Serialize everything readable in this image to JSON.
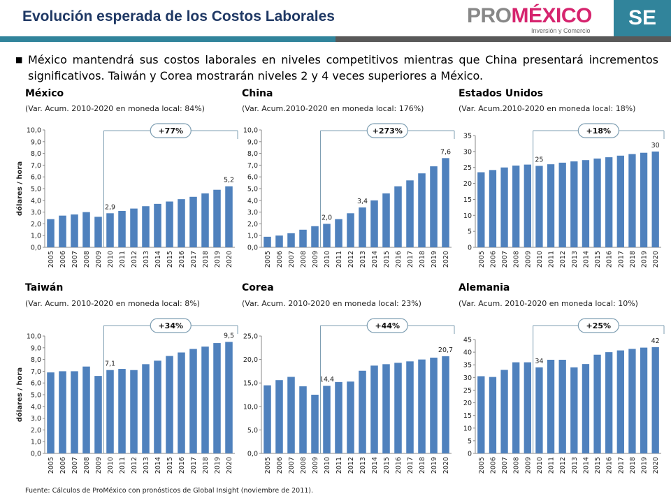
{
  "header": {
    "title": "Evolución esperada de los Costos Laborales",
    "logo_main_pro": "PRO",
    "logo_main_mexico": "MÉXICO",
    "logo_sub": "Inversión y Comercio",
    "se_badge": "SE"
  },
  "colors": {
    "bar": "#4f81bd",
    "accent": "#31849b",
    "title": "#1f3864",
    "brand_pink": "#d6246e"
  },
  "bullet_text": "México mantendrá sus costos laborales en niveles competitivos mientras que China presentará incrementos significativos. Taiwán y Corea mostrarán niveles 2 y 4 veces superiores a México.",
  "source": "Fuente: Cálculos de ProMéxico con pronósticos de Global Insight (noviembre de 2011).",
  "chart_data": [
    {
      "id": "mexico",
      "type": "bar",
      "title": "México",
      "subtitle": "(Var. Acum. 2010-2020 en moneda local: 84%)",
      "ylabel": "dólares / hora",
      "ylim": [
        0,
        10
      ],
      "ystep": 1,
      "decimals": 1,
      "categories": [
        "2005",
        "2006",
        "2007",
        "2008",
        "2009",
        "2010",
        "2011",
        "2012",
        "2013",
        "2014",
        "2015",
        "2016",
        "2017",
        "2018",
        "2019",
        "2020"
      ],
      "values": [
        2.4,
        2.7,
        2.8,
        3.0,
        2.6,
        2.9,
        3.1,
        3.3,
        3.5,
        3.7,
        3.9,
        4.1,
        4.3,
        4.6,
        4.9,
        5.2
      ],
      "labels": [
        {
          "index": 5,
          "text": "2,9"
        },
        {
          "index": 15,
          "text": "5,2"
        }
      ],
      "badge": "+77%"
    },
    {
      "id": "china",
      "type": "bar",
      "title": "China",
      "subtitle": "(Var. Acum.2010-2020 en moneda local: 176%)",
      "ylabel": "",
      "ylim": [
        0,
        10
      ],
      "ystep": 1,
      "decimals": 1,
      "categories": [
        "2005",
        "2006",
        "2007",
        "2008",
        "2009",
        "2010",
        "2011",
        "2012",
        "2013",
        "2014",
        "2015",
        "2016",
        "2017",
        "2018",
        "2019",
        "2020"
      ],
      "values": [
        0.9,
        1.0,
        1.2,
        1.5,
        1.8,
        2.0,
        2.4,
        2.9,
        3.4,
        4.0,
        4.6,
        5.2,
        5.7,
        6.3,
        6.9,
        7.6
      ],
      "labels": [
        {
          "index": 5,
          "text": "2,0"
        },
        {
          "index": 8,
          "text": "3,4"
        },
        {
          "index": 15,
          "text": "7,6"
        }
      ],
      "badge": "+273%"
    },
    {
      "id": "usa",
      "type": "bar",
      "title": "Estados Unidos",
      "subtitle": "(Var. Acum.2010-2020 en moneda local: 18%)",
      "ylabel": "",
      "ylim": [
        0,
        35
      ],
      "ystep": 5,
      "decimals": 0,
      "categories": [
        "2005",
        "2006",
        "2007",
        "2008",
        "2009",
        "2010",
        "2011",
        "2012",
        "2013",
        "2014",
        "2015",
        "2016",
        "2017",
        "2018",
        "2019",
        "2020"
      ],
      "values": [
        23.5,
        24.2,
        25.0,
        25.6,
        25.9,
        25.5,
        26.0,
        26.5,
        26.9,
        27.3,
        27.8,
        28.2,
        28.7,
        29.2,
        29.6,
        30.0
      ],
      "labels": [
        {
          "index": 5,
          "text": "25"
        },
        {
          "index": 15,
          "text": "30"
        }
      ],
      "badge": "+18%"
    },
    {
      "id": "taiwan",
      "type": "bar",
      "title": "Taiwán",
      "subtitle": "(Var. Acum. 2010-2020 en moneda local: 8%)",
      "ylabel": "dólares / hora",
      "ylim": [
        0,
        10
      ],
      "ystep": 1,
      "decimals": 1,
      "categories": [
        "2005",
        "2006",
        "2007",
        "2008",
        "2009",
        "2010",
        "2011",
        "2012",
        "2013",
        "2014",
        "2015",
        "2016",
        "2017",
        "2018",
        "2019",
        "2020"
      ],
      "values": [
        6.9,
        7.0,
        7.0,
        7.4,
        6.6,
        7.1,
        7.2,
        7.1,
        7.6,
        7.9,
        8.3,
        8.6,
        8.9,
        9.1,
        9.4,
        9.5
      ],
      "labels": [
        {
          "index": 5,
          "text": "7,1"
        },
        {
          "index": 15,
          "text": "9,5"
        }
      ],
      "badge": "+34%"
    },
    {
      "id": "corea",
      "type": "bar",
      "title": "Corea",
      "subtitle": "(Var. Acum. 2010-2020 en moneda local: 23%)",
      "ylabel": "",
      "ylim": [
        0,
        25
      ],
      "ystep": 5,
      "decimals": 1,
      "categories": [
        "2005",
        "2006",
        "2007",
        "2008",
        "2009",
        "2010",
        "2011",
        "2012",
        "2013",
        "2014",
        "2015",
        "2016",
        "2017",
        "2018",
        "2019",
        "2020"
      ],
      "values": [
        14.5,
        15.6,
        16.3,
        14.3,
        12.5,
        14.4,
        15.2,
        15.3,
        17.6,
        18.7,
        19.0,
        19.3,
        19.6,
        20.0,
        20.4,
        20.7
      ],
      "labels": [
        {
          "index": 5,
          "text": "14,4"
        },
        {
          "index": 15,
          "text": "20,7"
        }
      ],
      "badge": "+44%"
    },
    {
      "id": "alemania",
      "type": "bar",
      "title": "Alemania",
      "subtitle": "(Var. Acum. 2010-2020 en moneda local: 10%)",
      "ylabel": "",
      "ylim": [
        0,
        45
      ],
      "ystep": 5,
      "decimals": 0,
      "categories": [
        "2005",
        "2006",
        "2007",
        "2008",
        "2009",
        "2010",
        "2011",
        "2012",
        "2013",
        "2014",
        "2015",
        "2016",
        "2017",
        "2018",
        "2019",
        "2020"
      ],
      "values": [
        30.5,
        30.2,
        33.0,
        36.0,
        36.0,
        34.0,
        37.0,
        37.0,
        34.0,
        35.3,
        39.0,
        40.0,
        40.7,
        41.3,
        41.8,
        42.0
      ],
      "labels": [
        {
          "index": 5,
          "text": "34"
        },
        {
          "index": 15,
          "text": "42"
        }
      ],
      "badge": "+25%"
    }
  ]
}
